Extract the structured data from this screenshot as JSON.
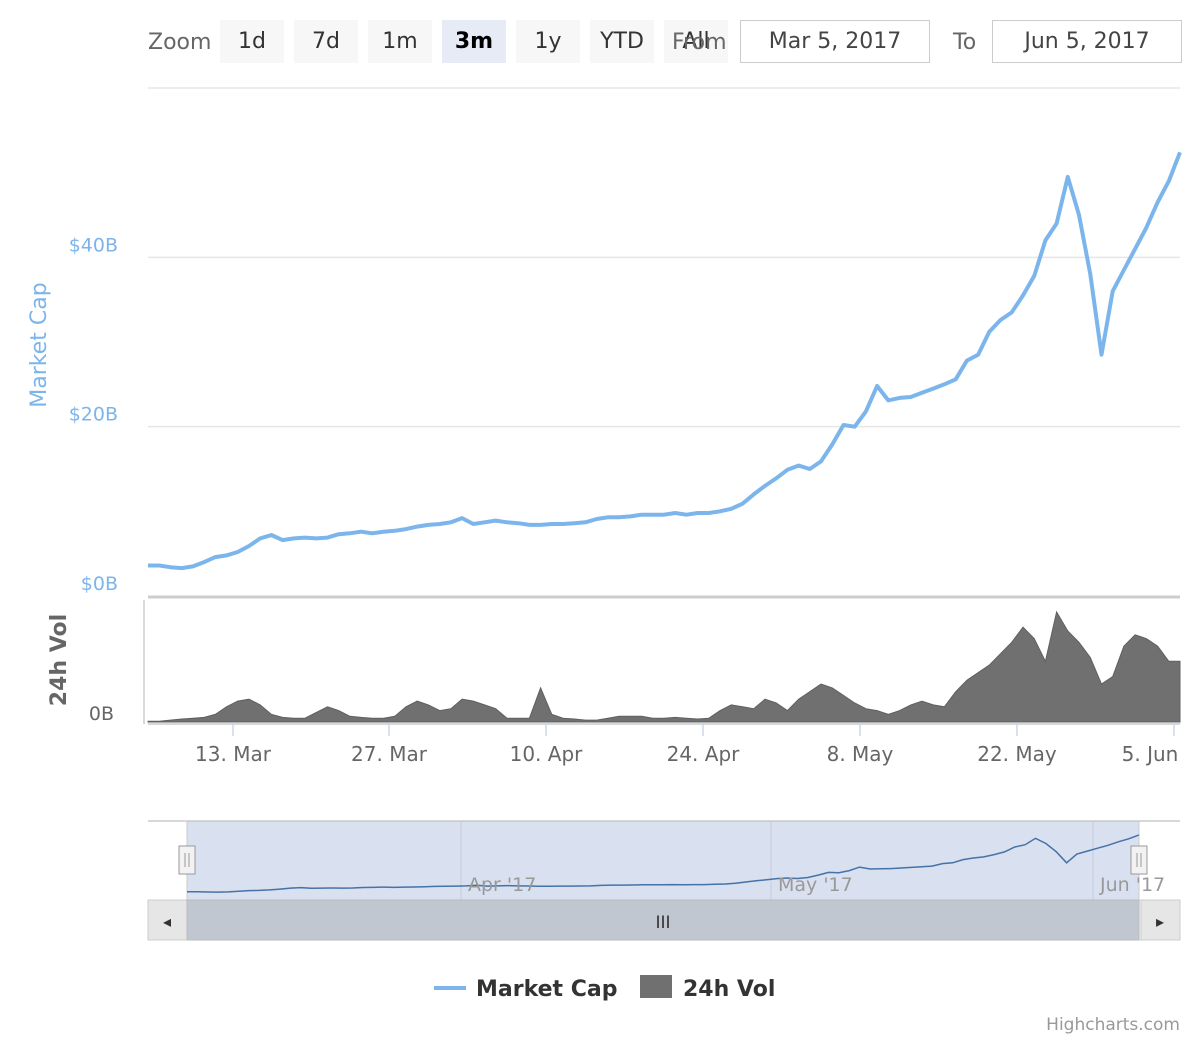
{
  "rangeSelector": {
    "zoom_label": "Zoom",
    "buttons": [
      "1d",
      "7d",
      "1m",
      "3m",
      "1y",
      "YTD",
      "All"
    ],
    "active": "3m",
    "from_label": "From",
    "from_value": "Mar 5, 2017",
    "to_label": "To",
    "to_value": "Jun 5, 2017"
  },
  "navigator": {
    "ticks": [
      "Apr '17",
      "May '17",
      "Jun '17"
    ],
    "scroll_handle_glyph": "III",
    "left_arrow": "◂",
    "right_arrow": "▸"
  },
  "legend": {
    "items": [
      "Market Cap",
      "24h Vol"
    ]
  },
  "credits": "Highcharts.com",
  "colors": {
    "market_cap": "#7cb5ec",
    "volume": "#707070"
  },
  "chart_data": {
    "type": "line",
    "title": "",
    "x_ticks": [
      "13. Mar",
      "27. Mar",
      "10. Apr",
      "24. Apr",
      "8. May",
      "22. May",
      "5. Jun"
    ],
    "x_range": [
      "2017-03-05",
      "2017-06-05"
    ],
    "y_axes": [
      {
        "title": "Market Cap",
        "ticks": [
          "$0B",
          "$20B",
          "$40B"
        ],
        "tick_values": [
          0,
          20,
          40
        ],
        "unit": "billion USD",
        "ylim": [
          0,
          60
        ]
      },
      {
        "title": "24h Vol",
        "ticks": [
          "0B"
        ],
        "tick_values": [
          0
        ]
      }
    ],
    "grid": true,
    "legend_position": "bottom-center",
    "series": [
      {
        "name": "Market Cap",
        "type": "line",
        "x": [
          "2017-03-05",
          "2017-03-06",
          "2017-03-07",
          "2017-03-08",
          "2017-03-09",
          "2017-03-10",
          "2017-03-11",
          "2017-03-12",
          "2017-03-13",
          "2017-03-14",
          "2017-03-15",
          "2017-03-16",
          "2017-03-17",
          "2017-03-18",
          "2017-03-19",
          "2017-03-20",
          "2017-03-21",
          "2017-03-22",
          "2017-03-23",
          "2017-03-24",
          "2017-03-25",
          "2017-03-26",
          "2017-03-27",
          "2017-03-28",
          "2017-03-29",
          "2017-03-30",
          "2017-03-31",
          "2017-04-01",
          "2017-04-02",
          "2017-04-03",
          "2017-04-04",
          "2017-04-05",
          "2017-04-06",
          "2017-04-07",
          "2017-04-08",
          "2017-04-09",
          "2017-04-10",
          "2017-04-11",
          "2017-04-12",
          "2017-04-13",
          "2017-04-14",
          "2017-04-15",
          "2017-04-16",
          "2017-04-17",
          "2017-04-18",
          "2017-04-19",
          "2017-04-20",
          "2017-04-21",
          "2017-04-22",
          "2017-04-23",
          "2017-04-24",
          "2017-04-25",
          "2017-04-26",
          "2017-04-27",
          "2017-04-28",
          "2017-04-29",
          "2017-04-30",
          "2017-05-01",
          "2017-05-02",
          "2017-05-03",
          "2017-05-04",
          "2017-05-05",
          "2017-05-06",
          "2017-05-07",
          "2017-05-08",
          "2017-05-09",
          "2017-05-10",
          "2017-05-11",
          "2017-05-12",
          "2017-05-13",
          "2017-05-14",
          "2017-05-15",
          "2017-05-16",
          "2017-05-17",
          "2017-05-18",
          "2017-05-19",
          "2017-05-20",
          "2017-05-21",
          "2017-05-22",
          "2017-05-23",
          "2017-05-24",
          "2017-05-25",
          "2017-05-26",
          "2017-05-27",
          "2017-05-28",
          "2017-05-29",
          "2017-05-30",
          "2017-05-31",
          "2017-06-01",
          "2017-06-02",
          "2017-06-03",
          "2017-06-04",
          "2017-06-05"
        ],
        "values": [
          3.6,
          3.6,
          3.4,
          3.3,
          3.5,
          4.0,
          4.6,
          4.8,
          5.2,
          5.9,
          6.8,
          7.2,
          6.6,
          6.8,
          6.9,
          6.8,
          6.9,
          7.3,
          7.4,
          7.6,
          7.4,
          7.6,
          7.7,
          7.9,
          8.2,
          8.4,
          8.5,
          8.7,
          9.2,
          8.5,
          8.7,
          8.9,
          8.7,
          8.6,
          8.4,
          8.4,
          8.5,
          8.5,
          8.6,
          8.7,
          9.1,
          9.3,
          9.3,
          9.4,
          9.6,
          9.6,
          9.6,
          9.8,
          9.6,
          9.8,
          9.8,
          10.0,
          10.3,
          10.9,
          12.0,
          13.0,
          13.9,
          14.9,
          15.4,
          15.0,
          15.9,
          17.9,
          20.2,
          20.0,
          21.8,
          24.8,
          23.1,
          23.4,
          23.5,
          24.0,
          24.5,
          25.0,
          25.6,
          27.8,
          28.5,
          31.2,
          32.6,
          33.5,
          35.5,
          37.8,
          42.0,
          44.0,
          49.5,
          45.0,
          38.0,
          28.5,
          36.0,
          38.5,
          41.0,
          43.5,
          46.5,
          49.0,
          52.4
        ]
      },
      {
        "name": "24h Vol",
        "type": "area",
        "x": [
          "2017-03-05",
          "2017-03-06",
          "2017-03-07",
          "2017-03-08",
          "2017-03-09",
          "2017-03-10",
          "2017-03-11",
          "2017-03-12",
          "2017-03-13",
          "2017-03-14",
          "2017-03-15",
          "2017-03-16",
          "2017-03-17",
          "2017-03-18",
          "2017-03-19",
          "2017-03-20",
          "2017-03-21",
          "2017-03-22",
          "2017-03-23",
          "2017-03-24",
          "2017-03-25",
          "2017-03-26",
          "2017-03-27",
          "2017-03-28",
          "2017-03-29",
          "2017-03-30",
          "2017-03-31",
          "2017-04-01",
          "2017-04-02",
          "2017-04-03",
          "2017-04-04",
          "2017-04-05",
          "2017-04-06",
          "2017-04-07",
          "2017-04-08",
          "2017-04-09",
          "2017-04-10",
          "2017-04-11",
          "2017-04-12",
          "2017-04-13",
          "2017-04-14",
          "2017-04-15",
          "2017-04-16",
          "2017-04-17",
          "2017-04-18",
          "2017-04-19",
          "2017-04-20",
          "2017-04-21",
          "2017-04-22",
          "2017-04-23",
          "2017-04-24",
          "2017-04-25",
          "2017-04-26",
          "2017-04-27",
          "2017-04-28",
          "2017-04-29",
          "2017-04-30",
          "2017-05-01",
          "2017-05-02",
          "2017-05-03",
          "2017-05-04",
          "2017-05-05",
          "2017-05-06",
          "2017-05-07",
          "2017-05-08",
          "2017-05-09",
          "2017-05-10",
          "2017-05-11",
          "2017-05-12",
          "2017-05-13",
          "2017-05-14",
          "2017-05-15",
          "2017-05-16",
          "2017-05-17",
          "2017-05-18",
          "2017-05-19",
          "2017-05-20",
          "2017-05-21",
          "2017-05-22",
          "2017-05-23",
          "2017-05-24",
          "2017-05-25",
          "2017-05-26",
          "2017-05-27",
          "2017-05-28",
          "2017-05-29",
          "2017-05-30",
          "2017-05-31",
          "2017-06-01",
          "2017-06-02",
          "2017-06-03",
          "2017-06-04",
          "2017-06-05"
        ],
        "values": [
          0.02,
          0.02,
          0.05,
          0.08,
          0.1,
          0.12,
          0.2,
          0.4,
          0.55,
          0.6,
          0.45,
          0.2,
          0.12,
          0.1,
          0.1,
          0.25,
          0.4,
          0.3,
          0.15,
          0.12,
          0.1,
          0.1,
          0.15,
          0.4,
          0.55,
          0.45,
          0.3,
          0.35,
          0.6,
          0.55,
          0.45,
          0.35,
          0.1,
          0.1,
          0.1,
          0.9,
          0.2,
          0.1,
          0.08,
          0.05,
          0.05,
          0.1,
          0.15,
          0.15,
          0.15,
          0.1,
          0.1,
          0.12,
          0.1,
          0.08,
          0.1,
          0.3,
          0.45,
          0.4,
          0.35,
          0.6,
          0.5,
          0.3,
          0.6,
          0.8,
          1.0,
          0.9,
          0.7,
          0.5,
          0.35,
          0.3,
          0.2,
          0.3,
          0.45,
          0.55,
          0.45,
          0.4,
          0.8,
          1.1,
          1.3,
          1.5,
          1.8,
          2.1,
          2.5,
          2.2,
          1.6,
          2.9,
          2.4,
          2.1,
          1.7,
          1.0,
          1.2,
          2.0,
          2.3,
          2.2,
          2.0,
          1.6,
          1.6
        ]
      }
    ]
  }
}
